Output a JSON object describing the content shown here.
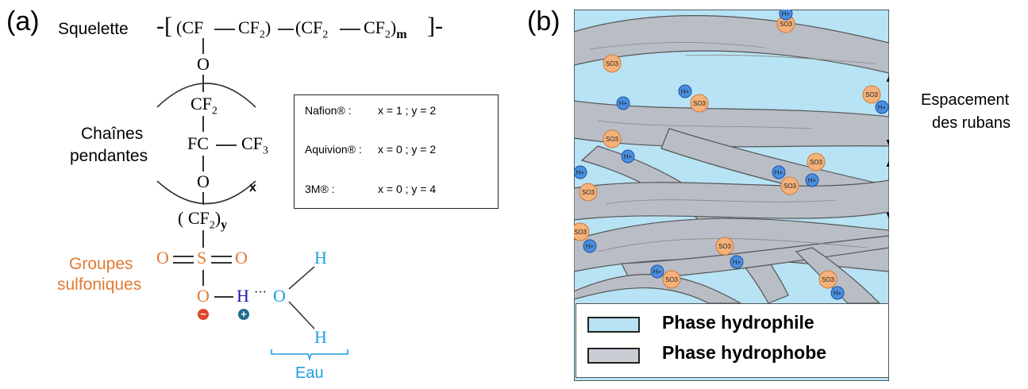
{
  "panel_a": {
    "label": "(a)",
    "backbone_label": "Squelette",
    "side_chain_label_line1": "Chaînes",
    "side_chain_label_line2": "pendantes",
    "sulfonic_label_line1": "Groupes",
    "sulfonic_label_line2": "sulfoniques",
    "water_label": "Eau",
    "backbone_formula": {
      "cf": "(CF",
      "cf2_a": "CF",
      "cf2_b": "(CF",
      "cf2_c": "CF",
      "sub2": "2",
      "close": ")",
      "m": "m"
    },
    "atoms": {
      "o1": "O",
      "cf2": "CF",
      "fc": "FC",
      "cf3": "CF",
      "sub3": "3",
      "o2": "O",
      "x": "x",
      "cf2y": "( CF",
      "y": "y",
      "s": "S",
      "o_left": "O",
      "o_right": "O",
      "o_bottom": "O",
      "h": "H",
      "water_o": "O",
      "water_h_top": "H",
      "water_h_bottom": "H"
    },
    "table": [
      {
        "name": "Nafion® :",
        "value": "x = 1  ;  y = 2"
      },
      {
        "name": "Aquivion® :",
        "value": "x = 0  ;  y = 2"
      },
      {
        "name": "3M® :",
        "value": "x = 0  ;  y = 4"
      }
    ]
  },
  "panel_b": {
    "label": "(b)",
    "spacing_label_line1": "Espacement",
    "spacing_label_line2": "des rubans",
    "group_so3": "SO3",
    "group_h": "H+",
    "legend": [
      {
        "label": "Phase hydrophile",
        "color": "#b7e3f4"
      },
      {
        "label": "Phase hydrophobe",
        "color": "#c9cdd4"
      }
    ]
  },
  "colors": {
    "orange": "#e07a33",
    "water_blue": "#1f9ee0",
    "hydrogen_navy": "#1a1ab5",
    "ribbon": "#b9bdc6",
    "water_phase": "#b7e3f4"
  }
}
